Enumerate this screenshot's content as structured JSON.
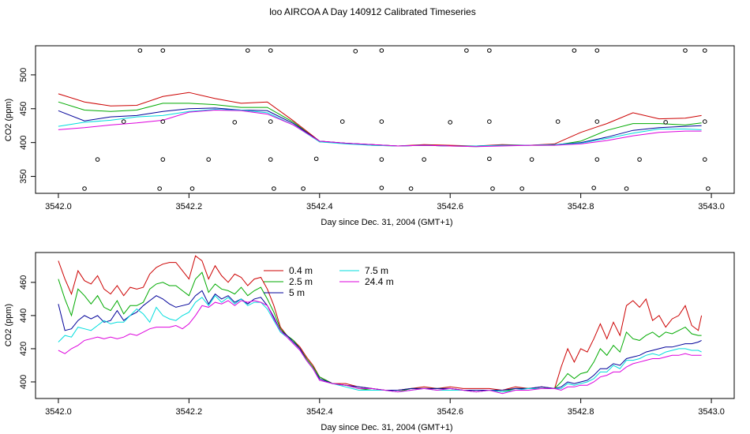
{
  "title": "loo AIRCOA A  Day 140912  Calibrated Timeseries",
  "colors": {
    "0.4 m": "#cc0000",
    "2.5 m": "#00aa00",
    "5 m": "#000099",
    "7.5 m": "#00dddd",
    "24.4 m": "#dd00dd",
    "markers": "#000000"
  },
  "chart_data": [
    {
      "type": "line",
      "xlabel": "Day since Dec. 31, 2004 (GMT+1)",
      "ylabel": "CO2 (ppm)",
      "xlim": [
        3541.965,
        3543.035
      ],
      "ylim": [
        325,
        543
      ],
      "xticks": [
        "3542.0",
        "3542.2",
        "3542.4",
        "3542.6",
        "3542.8",
        "3543.0"
      ],
      "yticks": [
        "350",
        "400",
        "450",
        "500"
      ],
      "x": [
        3542.0,
        3542.04,
        3542.08,
        3542.12,
        3542.16,
        3542.2,
        3542.24,
        3542.28,
        3542.32,
        3542.36,
        3542.4,
        3542.44,
        3542.48,
        3542.52,
        3542.56,
        3542.6,
        3542.64,
        3542.68,
        3542.72,
        3542.76,
        3542.8,
        3542.84,
        3542.88,
        3542.92,
        3542.96,
        3542.985
      ],
      "series": [
        {
          "name": "0.4 m",
          "values": [
            472,
            460,
            454,
            455,
            468,
            474,
            465,
            458,
            460,
            432,
            402,
            399,
            397,
            395,
            397,
            396,
            395,
            397,
            396,
            398,
            415,
            428,
            444,
            435,
            436,
            440
          ]
        },
        {
          "name": "2.5 m",
          "values": [
            460,
            448,
            446,
            448,
            458,
            458,
            456,
            452,
            452,
            430,
            401,
            399,
            396,
            395,
            396,
            395,
            394,
            396,
            396,
            396,
            402,
            418,
            428,
            428,
            426,
            429
          ]
        },
        {
          "name": "5 m",
          "values": [
            447,
            432,
            438,
            440,
            446,
            450,
            451,
            448,
            447,
            428,
            402,
            399,
            397,
            395,
            396,
            395,
            395,
            396,
            396,
            397,
            400,
            408,
            418,
            422,
            424,
            425
          ]
        },
        {
          "name": "7.5 m",
          "values": [
            424,
            430,
            433,
            438,
            440,
            446,
            449,
            448,
            444,
            426,
            401,
            398,
            396,
            395,
            396,
            395,
            395,
            396,
            396,
            397,
            399,
            406,
            414,
            420,
            420,
            419
          ]
        },
        {
          "name": "24.4 m",
          "values": [
            419,
            422,
            426,
            429,
            433,
            445,
            448,
            447,
            442,
            426,
            402,
            399,
            397,
            395,
            396,
            395,
            394,
            395,
            396,
            396,
            398,
            403,
            410,
            415,
            417,
            417
          ]
        }
      ],
      "markers": [
        {
          "x": 3542.125,
          "y": 536
        },
        {
          "x": 3542.16,
          "y": 536
        },
        {
          "x": 3542.29,
          "y": 536
        },
        {
          "x": 3542.325,
          "y": 536
        },
        {
          "x": 3542.455,
          "y": 535
        },
        {
          "x": 3542.495,
          "y": 536
        },
        {
          "x": 3542.625,
          "y": 536
        },
        {
          "x": 3542.66,
          "y": 536
        },
        {
          "x": 3542.79,
          "y": 536
        },
        {
          "x": 3542.825,
          "y": 536
        },
        {
          "x": 3542.96,
          "y": 536
        },
        {
          "x": 3542.99,
          "y": 536
        },
        {
          "x": 3542.1,
          "y": 431
        },
        {
          "x": 3542.16,
          "y": 431
        },
        {
          "x": 3542.27,
          "y": 430
        },
        {
          "x": 3542.325,
          "y": 431
        },
        {
          "x": 3542.435,
          "y": 431
        },
        {
          "x": 3542.495,
          "y": 431
        },
        {
          "x": 3542.6,
          "y": 430
        },
        {
          "x": 3542.66,
          "y": 431
        },
        {
          "x": 3542.765,
          "y": 431
        },
        {
          "x": 3542.825,
          "y": 431
        },
        {
          "x": 3542.93,
          "y": 430
        },
        {
          "x": 3542.99,
          "y": 431
        },
        {
          "x": 3542.06,
          "y": 375
        },
        {
          "x": 3542.16,
          "y": 375
        },
        {
          "x": 3542.23,
          "y": 375
        },
        {
          "x": 3542.325,
          "y": 375
        },
        {
          "x": 3542.395,
          "y": 376
        },
        {
          "x": 3542.495,
          "y": 375
        },
        {
          "x": 3542.56,
          "y": 375
        },
        {
          "x": 3542.66,
          "y": 376
        },
        {
          "x": 3542.725,
          "y": 375
        },
        {
          "x": 3542.825,
          "y": 375
        },
        {
          "x": 3542.89,
          "y": 375
        },
        {
          "x": 3542.99,
          "y": 375
        },
        {
          "x": 3542.04,
          "y": 332
        },
        {
          "x": 3542.155,
          "y": 332
        },
        {
          "x": 3542.205,
          "y": 332
        },
        {
          "x": 3542.33,
          "y": 332
        },
        {
          "x": 3542.375,
          "y": 332
        },
        {
          "x": 3542.495,
          "y": 333
        },
        {
          "x": 3542.54,
          "y": 332
        },
        {
          "x": 3542.665,
          "y": 332
        },
        {
          "x": 3542.71,
          "y": 332
        },
        {
          "x": 3542.82,
          "y": 333
        },
        {
          "x": 3542.87,
          "y": 332
        },
        {
          "x": 3542.995,
          "y": 332
        }
      ]
    },
    {
      "type": "line",
      "xlabel": "Day since Dec. 31, 2004 (GMT+1)",
      "ylabel": "CO2 (ppm)",
      "xlim": [
        3541.965,
        3543.035
      ],
      "ylim": [
        390,
        478
      ],
      "xticks": [
        "3542.0",
        "3542.2",
        "3542.4",
        "3542.6",
        "3542.8",
        "3543.0"
      ],
      "yticks": [
        "400",
        "420",
        "440",
        "460"
      ],
      "legend": {
        "placement": "top-left",
        "entries": [
          "0.4 m",
          "2.5 m",
          "5 m",
          "7.5 m",
          "24.4 m"
        ]
      },
      "x": [
        3542.0,
        3542.01,
        3542.02,
        3542.03,
        3542.04,
        3542.05,
        3542.06,
        3542.07,
        3542.08,
        3542.09,
        3542.1,
        3542.11,
        3542.12,
        3542.13,
        3542.14,
        3542.15,
        3542.16,
        3542.17,
        3542.18,
        3542.19,
        3542.2,
        3542.21,
        3542.22,
        3542.23,
        3542.24,
        3542.25,
        3542.26,
        3542.27,
        3542.28,
        3542.29,
        3542.3,
        3542.31,
        3542.32,
        3542.33,
        3542.34,
        3542.35,
        3542.36,
        3542.37,
        3542.38,
        3542.39,
        3542.4,
        3542.42,
        3542.44,
        3542.46,
        3542.48,
        3542.5,
        3542.52,
        3542.54,
        3542.56,
        3542.58,
        3542.6,
        3542.62,
        3542.64,
        3542.66,
        3542.68,
        3542.7,
        3542.72,
        3542.74,
        3542.76,
        3542.77,
        3542.78,
        3542.79,
        3542.8,
        3542.81,
        3542.82,
        3542.83,
        3542.84,
        3542.85,
        3542.86,
        3542.87,
        3542.88,
        3542.89,
        3542.9,
        3542.91,
        3542.92,
        3542.93,
        3542.94,
        3542.95,
        3542.96,
        3542.97,
        3542.98,
        3542.985
      ],
      "series": [
        {
          "name": "0.4 m",
          "values": [
            473,
            462,
            453,
            467,
            461,
            459,
            464,
            456,
            453,
            458,
            452,
            457,
            456,
            457,
            465,
            469,
            471,
            472,
            472,
            467,
            462,
            476,
            473,
            462,
            470,
            464,
            460,
            465,
            463,
            458,
            462,
            463,
            456,
            446,
            433,
            428,
            425,
            421,
            415,
            410,
            403,
            399,
            399,
            397,
            396,
            395,
            395,
            396,
            397,
            396,
            397,
            396,
            396,
            396,
            395,
            397,
            396,
            397,
            396,
            409,
            420,
            412,
            420,
            418,
            426,
            435,
            426,
            436,
            428,
            446,
            449,
            445,
            450,
            437,
            440,
            433,
            438,
            440,
            446,
            434,
            431,
            440
          ]
        },
        {
          "name": "2.5 m",
          "values": [
            462,
            450,
            440,
            456,
            452,
            447,
            452,
            445,
            443,
            449,
            441,
            446,
            446,
            448,
            456,
            459,
            460,
            458,
            458,
            455,
            452,
            462,
            466,
            454,
            459,
            456,
            455,
            453,
            457,
            452,
            455,
            457,
            450,
            442,
            432,
            428,
            425,
            420,
            414,
            409,
            403,
            399,
            398,
            396,
            395,
            395,
            394,
            396,
            396,
            396,
            396,
            395,
            394,
            395,
            394,
            396,
            396,
            396,
            396,
            400,
            405,
            402,
            405,
            406,
            412,
            420,
            416,
            422,
            418,
            430,
            426,
            425,
            428,
            430,
            427,
            430,
            429,
            431,
            433,
            429,
            428,
            428
          ]
        },
        {
          "name": "5 m",
          "values": [
            447,
            431,
            432,
            437,
            440,
            438,
            440,
            436,
            437,
            443,
            437,
            440,
            442,
            446,
            449,
            452,
            450,
            447,
            445,
            446,
            447,
            452,
            455,
            447,
            453,
            450,
            452,
            448,
            450,
            447,
            450,
            451,
            446,
            439,
            431,
            428,
            424,
            420,
            413,
            408,
            402,
            399,
            398,
            397,
            396,
            395,
            395,
            396,
            396,
            396,
            396,
            395,
            395,
            395,
            395,
            396,
            396,
            397,
            396,
            397,
            400,
            399,
            400,
            401,
            404,
            408,
            408,
            411,
            410,
            414,
            415,
            416,
            418,
            419,
            420,
            421,
            421,
            422,
            423,
            423,
            424,
            425
          ]
        },
        {
          "name": "7.5 m",
          "values": [
            424,
            428,
            427,
            433,
            432,
            431,
            434,
            437,
            435,
            436,
            436,
            440,
            444,
            441,
            436,
            445,
            440,
            438,
            437,
            440,
            442,
            448,
            451,
            446,
            452,
            448,
            451,
            447,
            450,
            446,
            448,
            448,
            444,
            437,
            430,
            427,
            423,
            419,
            413,
            408,
            401,
            399,
            397,
            395,
            395,
            395,
            394,
            395,
            396,
            395,
            395,
            395,
            394,
            395,
            394,
            395,
            396,
            396,
            396,
            396,
            399,
            398,
            399,
            400,
            402,
            406,
            406,
            410,
            408,
            413,
            413,
            414,
            416,
            417,
            416,
            418,
            419,
            420,
            420,
            419,
            419,
            418
          ]
        },
        {
          "name": "24.4 m",
          "values": [
            419,
            417,
            420,
            422,
            425,
            426,
            427,
            426,
            427,
            426,
            427,
            429,
            428,
            430,
            432,
            433,
            433,
            433,
            434,
            432,
            435,
            440,
            446,
            445,
            448,
            447,
            449,
            446,
            449,
            448,
            449,
            448,
            446,
            438,
            431,
            427,
            423,
            419,
            413,
            408,
            401,
            399,
            398,
            396,
            396,
            395,
            394,
            395,
            396,
            395,
            396,
            395,
            394,
            395,
            393,
            395,
            395,
            396,
            396,
            395,
            397,
            397,
            398,
            398,
            400,
            403,
            404,
            406,
            406,
            409,
            411,
            412,
            413,
            414,
            414,
            415,
            416,
            416,
            417,
            416,
            416,
            416
          ]
        }
      ]
    }
  ]
}
